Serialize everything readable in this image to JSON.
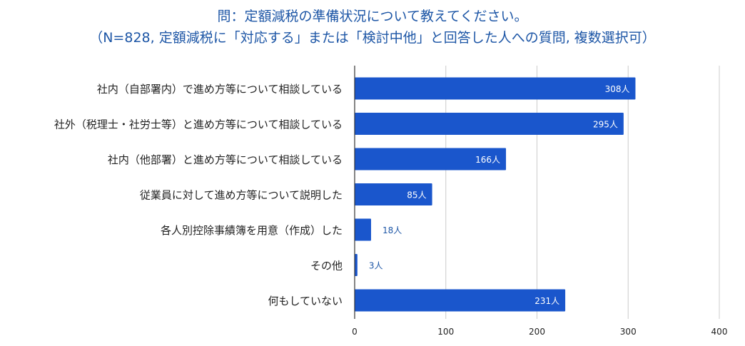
{
  "chart_data": {
    "type": "bar",
    "orientation": "horizontal",
    "title": "問：定額減税の準備状況について教えてください。",
    "subtitle": "（N=828, 定額減税に「対応する」または「検討中他」と回答した人への質問, 複数選択可）",
    "categories": [
      "社内（自部署内）で進め方等について相談している",
      "社外（税理士・社労士等）と進め方等について相談している",
      "社内（他部署）と進め方等について相談している",
      "従業員に対して進め方等について説明した",
      "各人別控除事績簿を用意（作成）した",
      "その他",
      "何もしていない"
    ],
    "values": [
      308,
      295,
      166,
      85,
      18,
      3,
      231
    ],
    "data_labels": [
      "308人",
      "295人",
      "166人",
      "85人",
      "18人",
      "3人",
      "231人"
    ],
    "xlim": [
      0,
      400
    ],
    "xticks": [
      "0",
      "100",
      "200",
      "300",
      "400"
    ],
    "xlabel": "",
    "ylabel": "",
    "grid": true,
    "bar_color": "#1a56cc",
    "label_inside_color": "#ffffff",
    "label_outside_color": "#1d56a6",
    "title_color": "#1d56a6"
  }
}
